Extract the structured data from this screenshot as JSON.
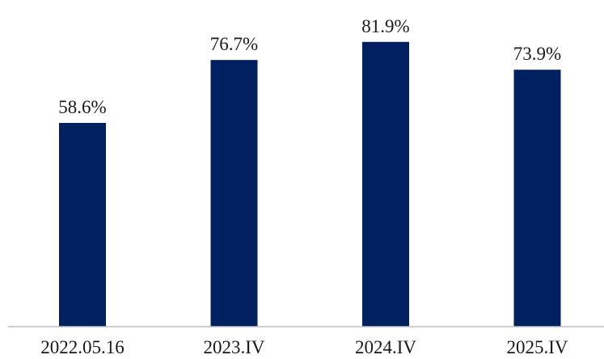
{
  "chart_data": {
    "type": "bar",
    "categories": [
      "2022.05.16",
      "2023.IV",
      "2024.IV",
      "2025.IV"
    ],
    "values": [
      58.6,
      76.7,
      81.9,
      73.9
    ],
    "data_labels": [
      "58.6%",
      "76.7%",
      "81.9%",
      "73.9%"
    ],
    "title": "",
    "xlabel": "",
    "ylabel": "",
    "ylim": [
      0,
      100
    ],
    "grid": false,
    "legend": "none",
    "bar_color": "#002060",
    "axis_color": "#bfbfbf"
  }
}
